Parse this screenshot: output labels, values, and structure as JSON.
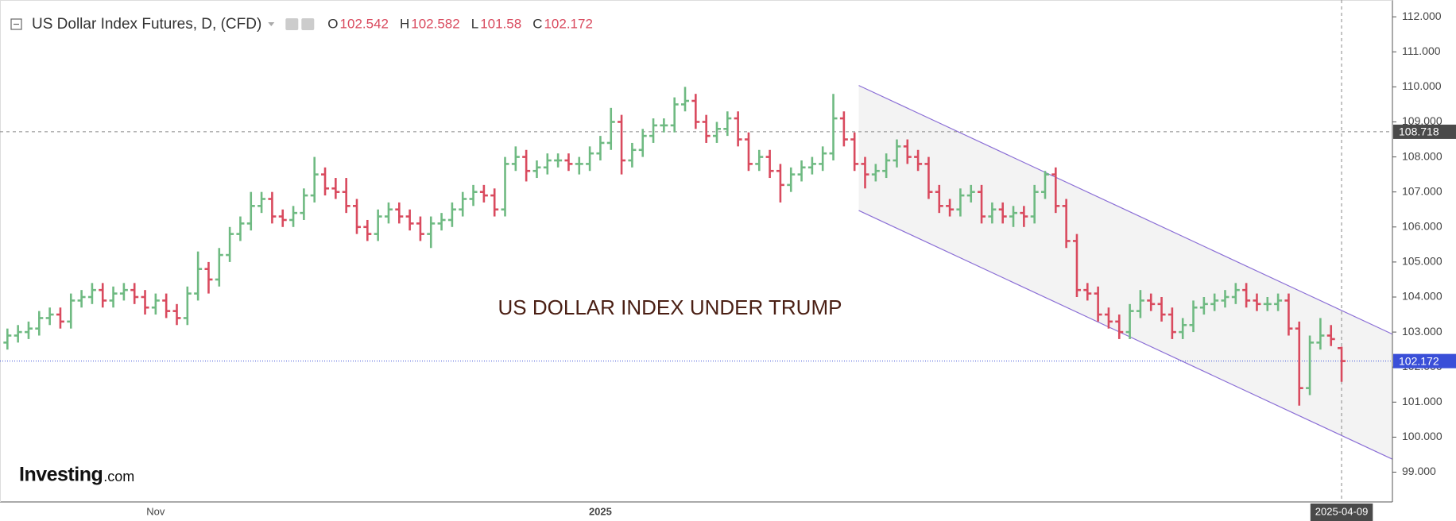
{
  "chart_data": {
    "type": "ohlc",
    "title": "US Dollar Index Futures, D, (CFD)",
    "ohlc_letters": [
      "O",
      "H",
      "L",
      "C"
    ],
    "annotation": "US DOLLAR INDEX UNDER TRUMP",
    "logo": {
      "brand": "Investing",
      "suffix": ".com"
    },
    "categories": [
      null,
      null,
      null,
      null,
      null,
      null,
      null,
      null,
      null,
      null,
      null,
      null,
      null,
      null,
      "Nov",
      null,
      null,
      null,
      null,
      null,
      null,
      null,
      null,
      null,
      null,
      null,
      null,
      null,
      null,
      null,
      null,
      null,
      null,
      null,
      null,
      null,
      null,
      null,
      null,
      null,
      null,
      null,
      null,
      null,
      null,
      null,
      null,
      null,
      null,
      null,
      null,
      null,
      null,
      null,
      null,
      null,
      "2025",
      null,
      null,
      null,
      null,
      null,
      null,
      null,
      null,
      null,
      null,
      null,
      null,
      null,
      null,
      null,
      null,
      null,
      null,
      null,
      null,
      null,
      null,
      null,
      null,
      null,
      null,
      null,
      null,
      null,
      null,
      null,
      null,
      null,
      null,
      null,
      null,
      null,
      null,
      null,
      null,
      null,
      null,
      null,
      null,
      null,
      null,
      null,
      null,
      null,
      null,
      null,
      null,
      null,
      null,
      null,
      null,
      null,
      null,
      null,
      null,
      null,
      null,
      null,
      null,
      null,
      null,
      null,
      null,
      null,
      "2025-04-09"
    ],
    "open": [
      102.7,
      102.9,
      103.0,
      103.1,
      103.4,
      103.5,
      103.3,
      103.9,
      104.0,
      104.2,
      103.9,
      104.1,
      104.2,
      104.0,
      103.7,
      103.9,
      103.6,
      103.4,
      104.1,
      104.8,
      104.5,
      105.2,
      105.8,
      106.1,
      106.6,
      106.8,
      106.3,
      106.2,
      106.4,
      106.9,
      107.5,
      107.1,
      107.0,
      106.6,
      106.0,
      105.8,
      106.3,
      106.5,
      106.3,
      106.1,
      105.8,
      106.1,
      106.2,
      106.5,
      106.8,
      107.0,
      106.9,
      106.5,
      107.8,
      108.0,
      107.6,
      107.7,
      107.9,
      107.9,
      107.8,
      107.8,
      108.1,
      108.4,
      109.0,
      107.9,
      108.2,
      108.6,
      108.9,
      108.9,
      109.5,
      109.6,
      109.0,
      108.6,
      108.8,
      109.1,
      108.5,
      107.8,
      108.0,
      107.6,
      107.2,
      107.5,
      107.7,
      107.8,
      108.1,
      109.1,
      108.5,
      107.8,
      107.5,
      107.6,
      107.9,
      108.3,
      108.0,
      107.8,
      107.0,
      106.6,
      106.5,
      106.9,
      107.0,
      106.3,
      106.5,
      106.3,
      106.4,
      106.3,
      107.0,
      107.5,
      106.6,
      105.6,
      104.2,
      104.1,
      103.5,
      103.3,
      103.0,
      103.6,
      103.9,
      103.8,
      103.5,
      103.0,
      103.2,
      103.7,
      103.8,
      103.9,
      104.0,
      104.2,
      103.9,
      103.8,
      103.8,
      103.9,
      103.1,
      101.4,
      102.7,
      102.9,
      102.542
    ],
    "high": [
      103.1,
      103.2,
      103.3,
      103.6,
      103.7,
      103.7,
      104.1,
      104.2,
      104.4,
      104.4,
      104.3,
      104.4,
      104.4,
      104.2,
      104.1,
      104.1,
      103.8,
      104.3,
      105.3,
      105.0,
      105.4,
      106.0,
      106.3,
      107.0,
      107.0,
      107.0,
      106.5,
      106.6,
      107.1,
      108.0,
      107.7,
      107.4,
      107.4,
      106.8,
      106.2,
      106.5,
      106.7,
      106.7,
      106.5,
      106.3,
      106.3,
      106.4,
      106.7,
      107.0,
      107.2,
      107.2,
      107.1,
      108.0,
      108.3,
      108.2,
      107.9,
      108.1,
      108.1,
      108.1,
      108.0,
      108.3,
      108.6,
      109.4,
      109.2,
      108.4,
      108.8,
      109.1,
      109.1,
      109.7,
      110.0,
      109.8,
      109.2,
      109.0,
      109.3,
      109.3,
      108.7,
      108.2,
      108.2,
      107.8,
      107.7,
      107.9,
      108.0,
      108.3,
      109.8,
      109.3,
      108.7,
      108.0,
      107.8,
      108.1,
      108.5,
      108.5,
      108.2,
      108.0,
      107.2,
      106.8,
      107.1,
      107.2,
      107.2,
      106.7,
      106.7,
      106.6,
      106.6,
      107.2,
      107.6,
      107.7,
      106.8,
      105.8,
      104.4,
      104.3,
      103.7,
      103.5,
      103.8,
      104.2,
      104.1,
      104.0,
      103.7,
      103.4,
      103.9,
      104.0,
      104.1,
      104.2,
      104.4,
      104.4,
      104.1,
      104.0,
      104.1,
      104.1,
      103.3,
      102.9,
      103.4,
      103.2,
      102.582
    ],
    "low": [
      102.5,
      102.7,
      102.8,
      102.9,
      103.2,
      103.1,
      103.1,
      103.7,
      103.8,
      103.7,
      103.7,
      103.9,
      103.8,
      103.5,
      103.5,
      103.4,
      103.2,
      103.2,
      103.9,
      104.1,
      104.3,
      105.0,
      105.6,
      105.9,
      106.4,
      106.1,
      106.0,
      106.0,
      106.2,
      106.7,
      106.9,
      106.8,
      106.4,
      105.8,
      105.6,
      105.6,
      106.1,
      106.1,
      105.9,
      105.6,
      105.4,
      105.9,
      106.0,
      106.3,
      106.6,
      106.7,
      106.3,
      106.3,
      107.6,
      107.3,
      107.4,
      107.5,
      107.7,
      107.6,
      107.5,
      107.6,
      107.9,
      108.2,
      107.5,
      107.7,
      108.0,
      108.4,
      108.7,
      108.7,
      109.3,
      108.8,
      108.4,
      108.4,
      108.6,
      108.3,
      107.6,
      107.6,
      107.4,
      106.7,
      107.0,
      107.3,
      107.5,
      107.6,
      107.9,
      108.3,
      107.6,
      107.1,
      107.3,
      107.4,
      107.7,
      107.8,
      107.6,
      106.8,
      106.4,
      106.3,
      106.3,
      106.7,
      106.1,
      106.1,
      106.1,
      106.0,
      106.0,
      106.1,
      106.8,
      106.4,
      105.4,
      104.0,
      103.9,
      103.3,
      103.1,
      102.8,
      102.8,
      103.4,
      103.6,
      103.3,
      102.8,
      102.8,
      103.0,
      103.5,
      103.6,
      103.7,
      103.8,
      103.7,
      103.6,
      103.6,
      103.6,
      102.9,
      100.9,
      101.2,
      102.5,
      102.6,
      101.58
    ],
    "close": [
      102.9,
      103.0,
      103.1,
      103.4,
      103.5,
      103.3,
      103.9,
      104.0,
      104.2,
      103.9,
      104.1,
      104.2,
      104.0,
      103.7,
      103.9,
      103.6,
      103.4,
      104.1,
      104.8,
      104.5,
      105.2,
      105.8,
      106.1,
      106.6,
      106.8,
      106.3,
      106.2,
      106.4,
      106.9,
      107.5,
      107.1,
      107.0,
      106.6,
      106.0,
      105.8,
      106.3,
      106.5,
      106.3,
      106.1,
      105.8,
      106.1,
      106.2,
      106.5,
      106.8,
      107.0,
      106.9,
      106.5,
      107.8,
      108.0,
      107.6,
      107.7,
      107.9,
      107.9,
      107.8,
      107.8,
      108.1,
      108.4,
      109.0,
      107.9,
      108.2,
      108.6,
      108.9,
      108.9,
      109.5,
      109.6,
      109.0,
      108.6,
      108.8,
      109.1,
      108.5,
      107.8,
      108.0,
      107.6,
      107.2,
      107.5,
      107.7,
      107.8,
      108.1,
      109.1,
      108.5,
      107.8,
      107.5,
      107.6,
      107.9,
      108.3,
      108.0,
      107.8,
      107.0,
      106.6,
      106.5,
      106.9,
      107.0,
      106.3,
      106.5,
      106.3,
      106.4,
      106.3,
      107.0,
      107.5,
      106.6,
      105.6,
      104.2,
      104.1,
      103.5,
      103.3,
      103.0,
      103.6,
      103.9,
      103.8,
      103.5,
      103.0,
      103.2,
      103.7,
      103.8,
      103.9,
      104.0,
      104.2,
      103.9,
      103.8,
      103.8,
      103.9,
      103.1,
      101.4,
      102.7,
      102.9,
      102.8,
      102.172
    ],
    "up_color": "#6fba82",
    "down_color": "#d94a5e",
    "xlim": [
      -0.7,
      130.8
    ],
    "ylim": [
      98.15,
      112.48
    ],
    "yticks": [
      {
        "value": 99,
        "label": "99.000"
      },
      {
        "value": 100,
        "label": "100.000"
      },
      {
        "value": 101,
        "label": "101.000"
      },
      {
        "value": 102,
        "label": "102.000"
      },
      {
        "value": 103,
        "label": "103.000"
      },
      {
        "value": 104,
        "label": "104.000"
      },
      {
        "value": 105,
        "label": "105.000"
      },
      {
        "value": 106,
        "label": "106.000"
      },
      {
        "value": 107,
        "label": "107.000"
      },
      {
        "value": 108,
        "label": "108.000"
      },
      {
        "value": 109,
        "label": "109.000"
      },
      {
        "value": 110,
        "label": "110.000"
      },
      {
        "value": 111,
        "label": "111.000"
      },
      {
        "value": 112,
        "label": "112.000"
      }
    ],
    "crosshair": {
      "y": 108.718
    },
    "channel": {
      "x": [
        80.4,
        130.8
      ],
      "upper": [
        110.04,
        102.94
      ],
      "lower": [
        106.47,
        99.37
      ]
    }
  }
}
